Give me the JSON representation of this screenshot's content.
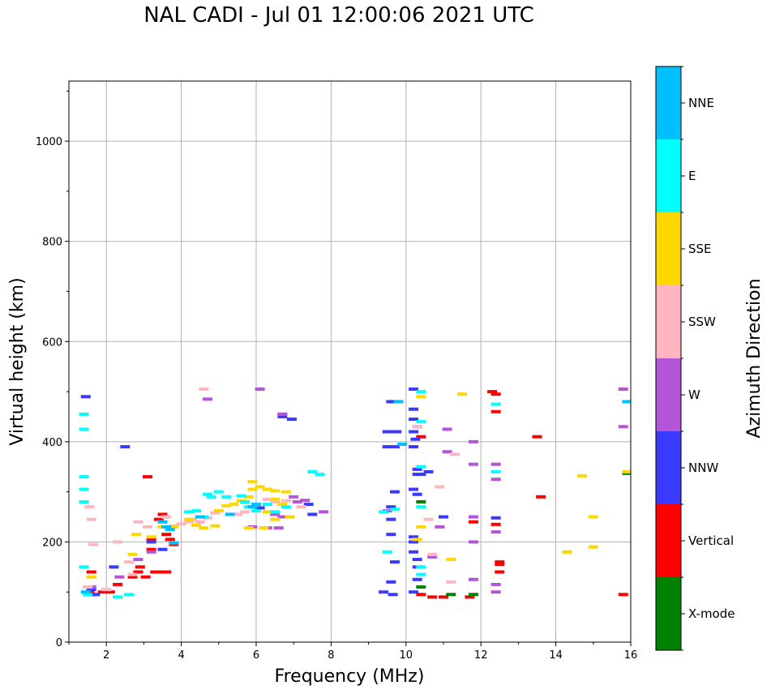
{
  "chart_data": {
    "type": "scatter",
    "title": "NAL CADI - Jul 01 12:00:06 2021 UTC",
    "xlabel": "Frequency (MHz)",
    "ylabel": "Virtual height (km)",
    "xlim": [
      1,
      16
    ],
    "ylim": [
      0,
      1120
    ],
    "xticks": [
      2,
      4,
      6,
      8,
      10,
      12,
      14,
      16
    ],
    "yticks": [
      0,
      200,
      400,
      600,
      800,
      1000
    ],
    "grid": true,
    "colorbar": {
      "label": "Azimuth Direction",
      "categories": [
        "X-mode",
        "Vertical",
        "NNW",
        "W",
        "SSW",
        "SSE",
        "E",
        "NNE"
      ],
      "colors": [
        "#008000",
        "#ff0000",
        "#3a3aff",
        "#b455d8",
        "#ffb6c1",
        "#ffd700",
        "#00ffff",
        "#00bfff"
      ]
    },
    "series": [
      {
        "name": "Vertical",
        "color": "#ff0000",
        "points": [
          [
            1.55,
            100
          ],
          [
            1.6,
            140
          ],
          [
            1.9,
            100
          ],
          [
            2.1,
            100
          ],
          [
            2.3,
            115
          ],
          [
            2.7,
            130
          ],
          [
            2.85,
            140
          ],
          [
            2.9,
            150
          ],
          [
            3.05,
            130
          ],
          [
            3.2,
            185
          ],
          [
            3.2,
            205
          ],
          [
            3.3,
            140
          ],
          [
            3.5,
            140
          ],
          [
            3.6,
            140
          ],
          [
            3.4,
            245
          ],
          [
            3.5,
            255
          ],
          [
            3.6,
            215
          ],
          [
            3.7,
            205
          ],
          [
            3.8,
            195
          ],
          [
            12.3,
            500
          ],
          [
            12.4,
            495
          ],
          [
            12.4,
            460
          ],
          [
            12.5,
            160
          ],
          [
            12.5,
            155
          ],
          [
            12.5,
            140
          ],
          [
            12.4,
            235
          ],
          [
            11,
            90
          ],
          [
            11.7,
            90
          ],
          [
            10.7,
            90
          ],
          [
            10.4,
            95
          ],
          [
            10.4,
            410
          ],
          [
            13.5,
            410
          ],
          [
            13.6,
            290
          ],
          [
            15.8,
            95
          ],
          [
            3.1,
            330
          ],
          [
            11.8,
            240
          ]
        ]
      },
      {
        "name": "X-mode",
        "color": "#008000",
        "points": [
          [
            1.6,
            95
          ],
          [
            11.2,
            95
          ],
          [
            11.8,
            95
          ],
          [
            10.4,
            110
          ],
          [
            10.4,
            280
          ],
          [
            15.9,
            337
          ]
        ]
      },
      {
        "name": "NNW",
        "color": "#3a3aff",
        "points": [
          [
            1.45,
            490
          ],
          [
            2.5,
            390
          ],
          [
            1.6,
            105
          ],
          [
            1.7,
            95
          ],
          [
            2.2,
            150
          ],
          [
            3.2,
            200
          ],
          [
            3.5,
            185
          ],
          [
            6.7,
            455
          ],
          [
            6.7,
            450
          ],
          [
            6.95,
            445
          ],
          [
            7.4,
            275
          ],
          [
            9.6,
            480
          ],
          [
            9.7,
            480
          ],
          [
            9.5,
            420
          ],
          [
            9.75,
            420
          ],
          [
            9.5,
            390
          ],
          [
            9.7,
            390
          ],
          [
            10.2,
            505
          ],
          [
            10.2,
            465
          ],
          [
            10.2,
            445
          ],
          [
            10.3,
            430
          ],
          [
            10.2,
            420
          ],
          [
            10.25,
            405
          ],
          [
            10.2,
            390
          ],
          [
            10.3,
            345
          ],
          [
            10.3,
            335
          ],
          [
            10.4,
            335
          ],
          [
            10.2,
            305
          ],
          [
            10.3,
            295
          ],
          [
            10.2,
            210
          ],
          [
            10.2,
            200
          ],
          [
            10.2,
            180
          ],
          [
            10.3,
            165
          ],
          [
            10.3,
            150
          ],
          [
            10.3,
            125
          ],
          [
            10.2,
            100
          ],
          [
            9.65,
            95
          ],
          [
            9.6,
            120
          ],
          [
            9.7,
            160
          ],
          [
            9.7,
            300
          ],
          [
            9.6,
            270
          ],
          [
            9.6,
            245
          ],
          [
            9.6,
            215
          ],
          [
            9.4,
            100
          ],
          [
            10.6,
            340
          ],
          [
            11,
            250
          ],
          [
            12.4,
            248
          ],
          [
            5.4,
            255
          ],
          [
            6.1,
            268
          ],
          [
            7.5,
            255
          ]
        ]
      },
      {
        "name": "W",
        "color": "#b455d8",
        "points": [
          [
            4.7,
            485
          ],
          [
            6.1,
            505
          ],
          [
            6.7,
            455
          ],
          [
            7.0,
            290
          ],
          [
            7.1,
            280
          ],
          [
            7.3,
            283
          ],
          [
            7.8,
            260
          ],
          [
            9.5,
            262
          ],
          [
            10.7,
            170
          ],
          [
            10.9,
            230
          ],
          [
            11.1,
            380
          ],
          [
            11.1,
            425
          ],
          [
            11.8,
            400
          ],
          [
            11.8,
            355
          ],
          [
            11.8,
            250
          ],
          [
            11.8,
            200
          ],
          [
            11.8,
            125
          ],
          [
            12.4,
            355
          ],
          [
            12.4,
            325
          ],
          [
            12.4,
            220
          ],
          [
            12.4,
            115
          ],
          [
            12.4,
            100
          ],
          [
            15.8,
            505
          ],
          [
            15.8,
            430
          ],
          [
            6.3,
            228
          ],
          [
            6.6,
            228
          ],
          [
            6.5,
            255
          ],
          [
            6.7,
            250
          ],
          [
            5.9,
            230
          ],
          [
            1.6,
            110
          ],
          [
            2.35,
            130
          ],
          [
            2.85,
            165
          ],
          [
            3.2,
            180
          ]
        ]
      },
      {
        "name": "SSW",
        "color": "#ffb6c1",
        "points": [
          [
            4.6,
            505
          ],
          [
            1.65,
            195
          ],
          [
            1.6,
            245
          ],
          [
            1.55,
            270
          ],
          [
            1.5,
            110
          ],
          [
            1.6,
            130
          ],
          [
            2.0,
            105
          ],
          [
            2.3,
            200
          ],
          [
            2.6,
            160
          ],
          [
            2.7,
            135
          ],
          [
            2.85,
            240
          ],
          [
            3.1,
            230
          ],
          [
            4.2,
            240
          ],
          [
            4.3,
            245
          ],
          [
            4.5,
            240
          ],
          [
            4.7,
            248
          ],
          [
            4.9,
            258
          ],
          [
            5.0,
            262
          ],
          [
            5.5,
            255
          ],
          [
            5.7,
            260
          ],
          [
            6.3,
            285
          ],
          [
            6.5,
            280
          ],
          [
            6.8,
            282
          ],
          [
            7.2,
            270
          ],
          [
            10.9,
            310
          ],
          [
            11.2,
            120
          ],
          [
            11.3,
            375
          ],
          [
            10.3,
            430
          ],
          [
            10.6,
            245
          ],
          [
            10.7,
            175
          ],
          [
            3.6,
            250
          ],
          [
            3.8,
            232
          ],
          [
            4.0,
            236
          ]
        ]
      },
      {
        "name": "SSE",
        "color": "#ffd700",
        "points": [
          [
            1.6,
            130
          ],
          [
            2.7,
            175
          ],
          [
            2.8,
            215
          ],
          [
            3.2,
            210
          ],
          [
            3.5,
            230
          ],
          [
            3.8,
            230
          ],
          [
            4.2,
            245
          ],
          [
            4.4,
            233
          ],
          [
            4.6,
            228
          ],
          [
            4.9,
            232
          ],
          [
            5.0,
            262
          ],
          [
            5.2,
            272
          ],
          [
            5.4,
            275
          ],
          [
            5.6,
            282
          ],
          [
            5.8,
            290
          ],
          [
            5.9,
            305
          ],
          [
            5.9,
            320
          ],
          [
            6.1,
            310
          ],
          [
            6.3,
            305
          ],
          [
            6.5,
            302
          ],
          [
            6.8,
            300
          ],
          [
            6.5,
            285
          ],
          [
            6.7,
            275
          ],
          [
            6.3,
            260
          ],
          [
            6.5,
            245
          ],
          [
            6.9,
            250
          ],
          [
            6.2,
            228
          ],
          [
            5.8,
            228
          ],
          [
            11.5,
            495
          ],
          [
            11.2,
            165
          ],
          [
            14.7,
            332
          ],
          [
            14.3,
            180
          ],
          [
            15.0,
            250
          ],
          [
            15.0,
            190
          ],
          [
            15.9,
            340
          ],
          [
            10.4,
            230
          ],
          [
            10.4,
            490
          ],
          [
            10.3,
            205
          ]
        ]
      },
      {
        "name": "E",
        "color": "#00ffff",
        "points": [
          [
            1.4,
            455
          ],
          [
            1.4,
            425
          ],
          [
            1.4,
            330
          ],
          [
            1.4,
            305
          ],
          [
            1.4,
            280
          ],
          [
            1.4,
            150
          ],
          [
            1.5,
            95
          ],
          [
            2.3,
            90
          ],
          [
            2.6,
            95
          ],
          [
            4.2,
            260
          ],
          [
            4.4,
            262
          ],
          [
            4.7,
            295
          ],
          [
            4.8,
            290
          ],
          [
            5.0,
            300
          ],
          [
            5.2,
            290
          ],
          [
            5.6,
            292
          ],
          [
            5.7,
            280
          ],
          [
            5.8,
            270
          ],
          [
            6.0,
            262
          ],
          [
            6.3,
            275
          ],
          [
            6.5,
            260
          ],
          [
            6.8,
            270
          ],
          [
            7.5,
            340
          ],
          [
            7.7,
            335
          ],
          [
            9.4,
            260
          ],
          [
            9.7,
            265
          ],
          [
            10.4,
            500
          ],
          [
            10.4,
            440
          ],
          [
            10.4,
            350
          ],
          [
            10.4,
            270
          ],
          [
            10.4,
            150
          ],
          [
            10.4,
            135
          ],
          [
            9.5,
            180
          ],
          [
            12.4,
            340
          ],
          [
            12.4,
            475
          ],
          [
            4.6,
            250
          ]
        ]
      },
      {
        "name": "NNE",
        "color": "#00bfff",
        "points": [
          [
            1.45,
            100
          ],
          [
            3.6,
            230
          ],
          [
            3.7,
            225
          ],
          [
            3.5,
            240
          ],
          [
            3.8,
            198
          ],
          [
            4.5,
            250
          ],
          [
            5.3,
            255
          ],
          [
            5.9,
            270
          ],
          [
            6.0,
            275
          ],
          [
            15.9,
            480
          ],
          [
            9.8,
            480
          ],
          [
            9.9,
            395
          ]
        ]
      }
    ]
  }
}
